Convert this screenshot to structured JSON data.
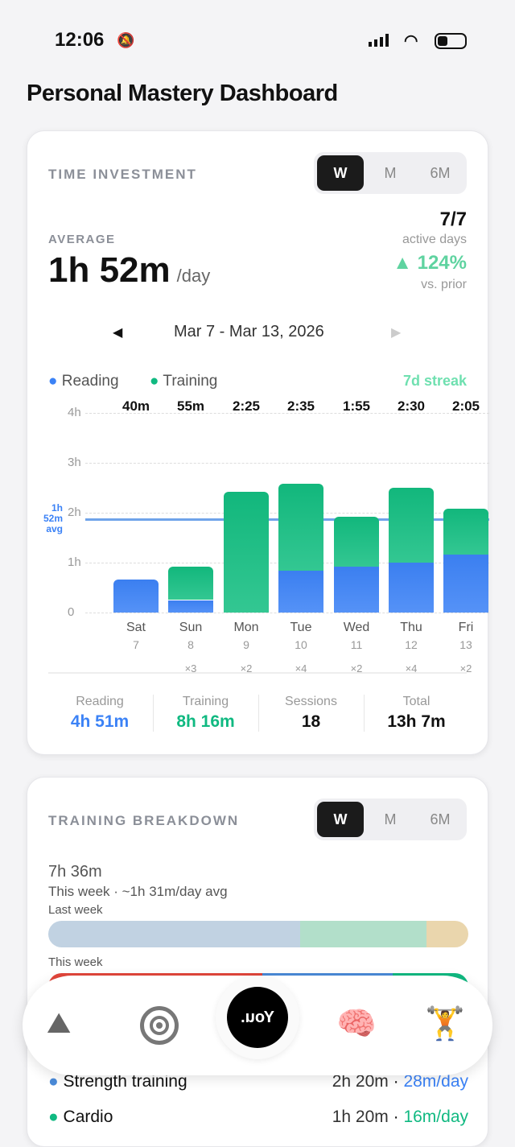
{
  "status": {
    "time": "12:06"
  },
  "title": "Personal Mastery Dashboard",
  "time_investment": {
    "section_title": "TIME INVESTMENT",
    "periods": [
      "W",
      "M",
      "6M"
    ],
    "selected_period": "W",
    "average_label": "AVERAGE",
    "average_value": "1h 52m",
    "average_unit": "/day",
    "active_days": "7/7",
    "active_days_label": "active days",
    "change": "124%",
    "change_label": "vs. prior",
    "date_range": "Mar 7 - Mar 13, 2026",
    "streak": "7d streak",
    "avg_label": [
      "1h",
      "52m",
      "avg"
    ],
    "summary": [
      {
        "label": "Reading",
        "value": "4h 51m"
      },
      {
        "label": "Training",
        "value": "8h 16m"
      },
      {
        "label": "Sessions",
        "value": "18"
      },
      {
        "label": "Total",
        "value": "13h 7m"
      }
    ]
  },
  "chart_data": {
    "type": "bar",
    "stacked": true,
    "categories": [
      "Sat",
      "Sun",
      "Mon",
      "Tue",
      "Wed",
      "Thu",
      "Fri"
    ],
    "dates": [
      "7",
      "8",
      "9",
      "10",
      "11",
      "12",
      "13"
    ],
    "totals": [
      "40m",
      "55m",
      "2:25",
      "2:35",
      "1:55",
      "2:30",
      "2:05"
    ],
    "sessions": [
      "",
      "×3",
      "×2",
      "×4",
      "×2",
      "×4",
      "×2"
    ],
    "series": [
      {
        "name": "Reading",
        "color": "#3b82f6",
        "values": [
          40,
          15,
          0,
          50,
          55,
          60,
          70
        ]
      },
      {
        "name": "Training",
        "color": "#10b981",
        "values": [
          0,
          40,
          145,
          105,
          60,
          90,
          55
        ]
      }
    ],
    "yticks": [
      "0",
      "1h",
      "2h",
      "3h",
      "4h"
    ],
    "ylim": [
      0,
      240
    ],
    "average": 112,
    "ylabel": "",
    "xlabel": ""
  },
  "training": {
    "section_title": "TRAINING BREAKDOWN",
    "periods": [
      "W",
      "M",
      "6M"
    ],
    "selected_period": "W",
    "total": "7h 36m",
    "subtitle": "This week · ~1h 31m/day avg",
    "last_week": "Last week",
    "this_week": "This week",
    "items": [
      {
        "name": "Strength training",
        "time": "2h 20m",
        "rate": "28m/day",
        "color": "#4a8ad8"
      },
      {
        "name": "Cardio",
        "time": "1h 20m",
        "rate": "16m/day",
        "color": "#10b981"
      }
    ]
  },
  "nav": {
    "center": "You."
  }
}
